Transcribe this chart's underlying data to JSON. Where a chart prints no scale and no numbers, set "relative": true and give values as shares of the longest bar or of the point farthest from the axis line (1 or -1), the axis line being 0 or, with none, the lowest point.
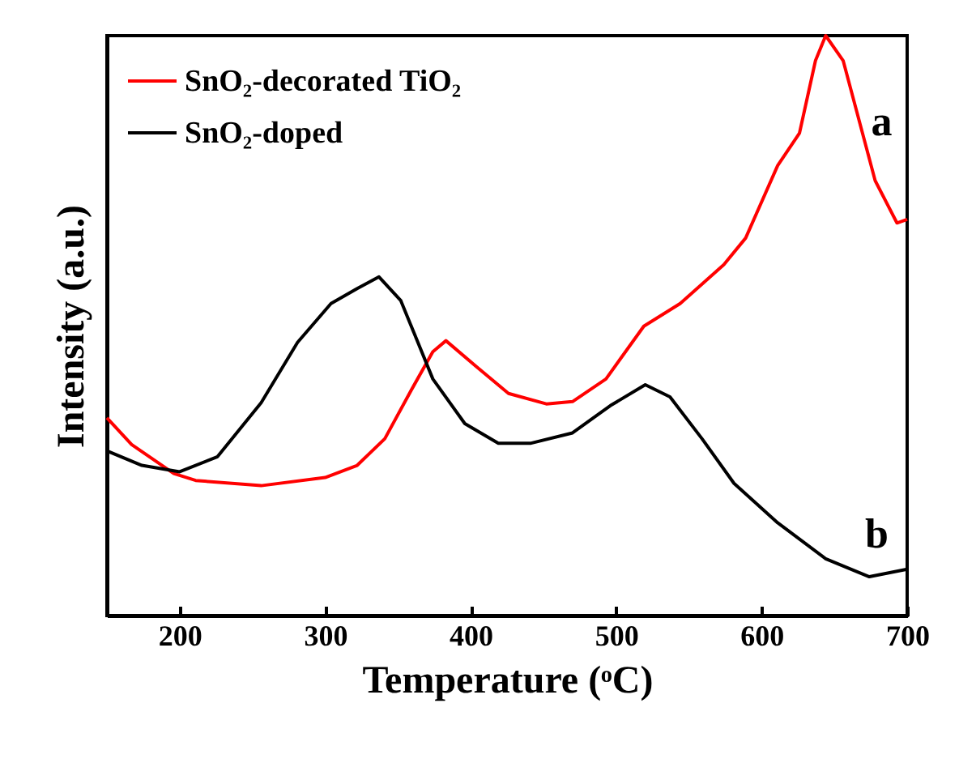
{
  "chart_data": {
    "type": "line",
    "xlabel": "Temperature (ᵒC)",
    "ylabel": "Intensity (a.u.)",
    "relative": true,
    "xlim": [
      150,
      700
    ],
    "xticks": [
      200,
      300,
      400,
      500,
      600,
      700
    ],
    "legend": "top left",
    "grid": false,
    "line_style": "solid",
    "series": [
      {
        "name": "SnO₂-decorated TiO₂",
        "color": "#ff0000",
        "x": [
          150,
          167,
          196,
          211,
          256,
          300,
          322,
          341,
          359,
          374,
          383,
          404,
          426,
          452,
          470,
          493,
          519,
          544,
          574,
          589,
          611,
          626,
          637,
          644,
          656,
          678,
          693,
          700
        ],
        "values": [
          0.341,
          0.295,
          0.245,
          0.233,
          0.224,
          0.238,
          0.259,
          0.305,
          0.388,
          0.455,
          0.474,
          0.429,
          0.383,
          0.365,
          0.369,
          0.408,
          0.499,
          0.538,
          0.605,
          0.651,
          0.776,
          0.832,
          0.957,
          1.0,
          0.957,
          0.75,
          0.677,
          0.683
        ]
      },
      {
        "name": "SnO₂-doped",
        "color": "#000000",
        "x": [
          150,
          174,
          200,
          226,
          256,
          281,
          304,
          322,
          337,
          352,
          374,
          396,
          419,
          441,
          470,
          496,
          520,
          537,
          559,
          581,
          611,
          644,
          674,
          700
        ],
        "values": [
          0.284,
          0.259,
          0.248,
          0.274,
          0.367,
          0.471,
          0.538,
          0.564,
          0.584,
          0.543,
          0.408,
          0.331,
          0.297,
          0.297,
          0.315,
          0.362,
          0.398,
          0.377,
          0.305,
          0.228,
          0.16,
          0.098,
          0.067,
          0.08
        ]
      }
    ],
    "annotations": [
      "a",
      "b"
    ]
  }
}
